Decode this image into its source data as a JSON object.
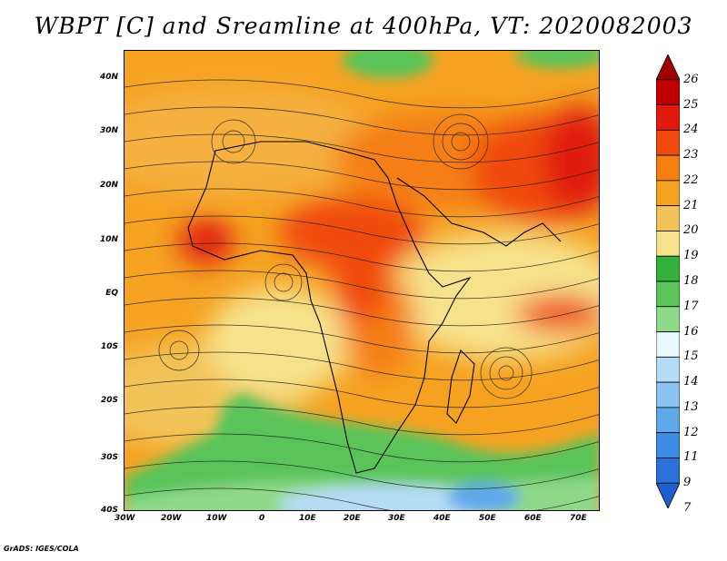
{
  "title": "WBPT [C] and Sreamline at 400hPa, VT: 2020082003",
  "credit": "GrADS: IGES/COLA",
  "axes": {
    "lat_labels": [
      "40N",
      "30N",
      "20N",
      "10N",
      "EQ",
      "10S",
      "20S",
      "30S",
      "40S"
    ],
    "lon_labels": [
      "30W",
      "20W",
      "10W",
      "0",
      "10E",
      "20E",
      "30E",
      "40E",
      "50E",
      "60E",
      "70E"
    ]
  },
  "colorbar": {
    "levels": [
      {
        "label": "26",
        "color": "#a00000"
      },
      {
        "label": "25",
        "color": "#c00000"
      },
      {
        "label": "24",
        "color": "#e11a0d"
      },
      {
        "label": "23",
        "color": "#f04a10"
      },
      {
        "label": "22",
        "color": "#f57f12"
      },
      {
        "label": "21",
        "color": "#f5a221"
      },
      {
        "label": "20",
        "color": "#f2c359"
      },
      {
        "label": "19",
        "color": "#f7e28c"
      },
      {
        "label": "18",
        "color": "#36b03c"
      },
      {
        "label": "17",
        "color": "#5ac45a"
      },
      {
        "label": "16",
        "color": "#8fd98a"
      },
      {
        "label": "15",
        "color": "#e6f8fa"
      },
      {
        "label": "14",
        "color": "#b5dcf5"
      },
      {
        "label": "13",
        "color": "#8cc3f0"
      },
      {
        "label": "12",
        "color": "#5fa8ea"
      },
      {
        "label": "11",
        "color": "#3c8de3"
      },
      {
        "label": "9",
        "color": "#2a72d8"
      },
      {
        "label": "7",
        "color": "#1e5fcf"
      }
    ]
  }
}
